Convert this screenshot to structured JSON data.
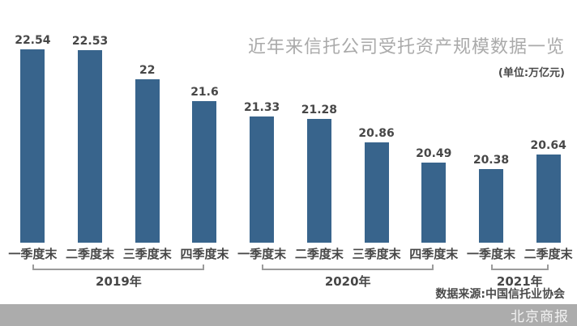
{
  "header": {
    "title": "近年来信托公司受托资产规模数据一览",
    "unit": "(单位:万亿元)"
  },
  "chart_data": {
    "type": "bar",
    "title": "近年来信托公司受托资产规模数据一览",
    "unit_label": "(单位:万亿元)",
    "categories": [
      "一季度末",
      "二季度末",
      "三季度末",
      "四季度末",
      "一季度末",
      "二季度末",
      "三季度末",
      "四季度末",
      "一季度末",
      "二季度末"
    ],
    "values": [
      22.54,
      22.53,
      22,
      21.6,
      21.33,
      21.28,
      20.86,
      20.49,
      20.38,
      20.64
    ],
    "groups": [
      {
        "label": "2019年",
        "start": 0,
        "end": 3
      },
      {
        "label": "2020年",
        "start": 4,
        "end": 7
      },
      {
        "label": "2021年",
        "start": 8,
        "end": 9
      }
    ],
    "ylim": [
      19.05,
      22.6
    ],
    "grid": false,
    "legend": false,
    "bar_color": "#38648c",
    "value_label_color": "#474747",
    "bracket_color": "#9b9b9b"
  },
  "source": "数据来源:中国信托业协会",
  "footer": {
    "brand": "北京商报",
    "bar_color": "#acacac",
    "text_color": "#f2f2f2"
  }
}
